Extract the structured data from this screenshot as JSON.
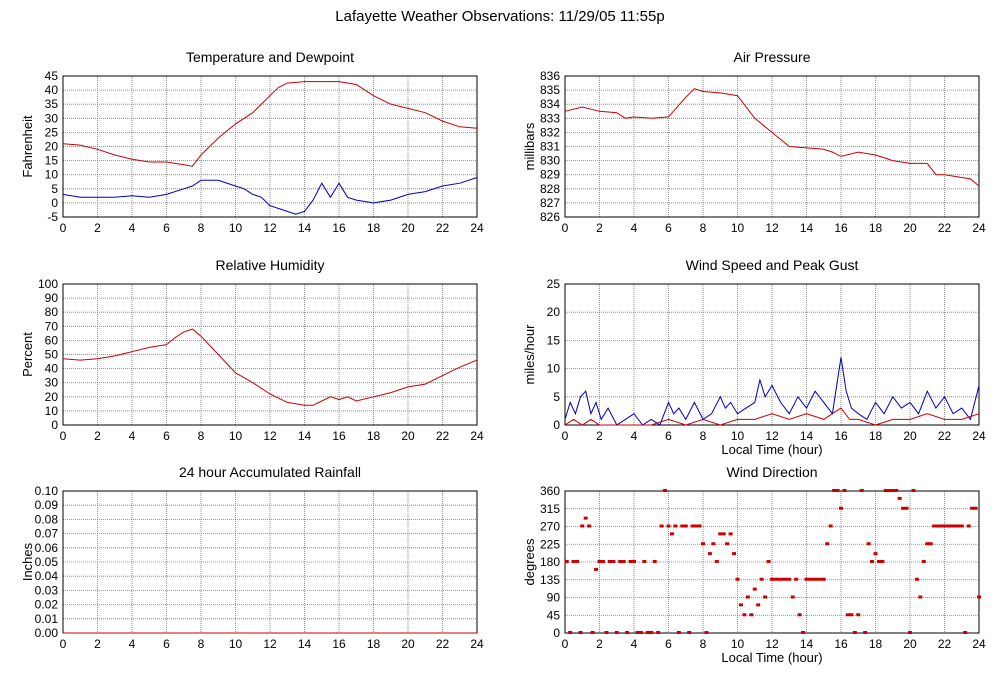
{
  "title": "Lafayette Weather Observations: 11/29/05 11:55p",
  "colors": {
    "red": "#cc0000",
    "blue": "#0000bb",
    "grid": "#777777"
  },
  "chart_data": [
    {
      "id": "temp",
      "type": "line",
      "title": "Temperature and Dewpoint",
      "xlabel": "",
      "ylabel": "Fahrenheit",
      "xlim": [
        0,
        24
      ],
      "ylim": [
        -5,
        45
      ],
      "xticks": [
        "0",
        "2",
        "4",
        "6",
        "8",
        "10",
        "12",
        "14",
        "16",
        "18",
        "20",
        "22",
        "24"
      ],
      "yticks": [
        "-5",
        "0",
        "5",
        "10",
        "15",
        "20",
        "25",
        "30",
        "35",
        "40",
        "45"
      ],
      "series": [
        {
          "color": "#cc0000",
          "x": [
            0,
            1,
            2,
            3,
            4,
            5,
            6,
            7,
            7.5,
            8,
            9,
            10,
            11,
            12,
            12.5,
            13,
            14,
            15,
            16,
            17,
            18,
            19,
            20,
            21,
            22,
            23,
            24
          ],
          "y": [
            21,
            20.5,
            19,
            17,
            15.5,
            14.5,
            14.5,
            13.5,
            13,
            17,
            23,
            28,
            32,
            38,
            41,
            42.5,
            43,
            43,
            43,
            42,
            38,
            35,
            33.5,
            32,
            29,
            27,
            26.5
          ]
        },
        {
          "color": "#0000bb",
          "x": [
            0,
            1,
            2,
            3,
            4,
            5,
            6,
            7,
            7.5,
            8,
            9,
            10,
            10.5,
            11,
            11.5,
            12,
            12.5,
            13,
            13.5,
            14,
            14.5,
            15,
            15.5,
            16,
            16.5,
            17,
            18,
            19,
            20,
            21,
            22,
            23,
            24
          ],
          "y": [
            3,
            2,
            2,
            2,
            2.5,
            2,
            3,
            5,
            6,
            8,
            8,
            6,
            5,
            3,
            2,
            -1,
            -2,
            -3,
            -4,
            -3,
            1,
            7,
            2,
            7,
            2,
            1,
            0,
            1,
            3,
            4,
            6,
            7,
            9
          ]
        }
      ]
    },
    {
      "id": "pressure",
      "type": "line",
      "title": "Air Pressure",
      "xlabel": "",
      "ylabel": "millibars",
      "xlim": [
        0,
        24
      ],
      "ylim": [
        826,
        836
      ],
      "xticks": [
        "0",
        "2",
        "4",
        "6",
        "8",
        "10",
        "12",
        "14",
        "16",
        "18",
        "20",
        "22",
        "24"
      ],
      "yticks": [
        "826",
        "827",
        "828",
        "829",
        "830",
        "831",
        "832",
        "833",
        "834",
        "835",
        "836"
      ],
      "series": [
        {
          "color": "#cc0000",
          "x": [
            0,
            1,
            2,
            3,
            3.5,
            4,
            5,
            6,
            7,
            7.5,
            8,
            9,
            10,
            11,
            12,
            13,
            14,
            15,
            15.5,
            16,
            17,
            18,
            19,
            20,
            21,
            21.5,
            22,
            23,
            23.5,
            24
          ],
          "y": [
            833.5,
            833.8,
            833.5,
            833.4,
            833.0,
            833.1,
            833.0,
            833.1,
            834.5,
            835.1,
            834.9,
            834.8,
            834.6,
            833.0,
            832.0,
            831.0,
            830.9,
            830.8,
            830.6,
            830.3,
            830.6,
            830.4,
            830.0,
            829.8,
            829.8,
            829.0,
            829.0,
            828.8,
            828.7,
            828.2
          ]
        }
      ]
    },
    {
      "id": "humidity",
      "type": "line",
      "title": "Relative Humidity",
      "xlabel": "",
      "ylabel": "Percent",
      "xlim": [
        0,
        24
      ],
      "ylim": [
        0,
        100
      ],
      "xticks": [
        "0",
        "2",
        "4",
        "6",
        "8",
        "10",
        "12",
        "14",
        "16",
        "18",
        "20",
        "22",
        "24"
      ],
      "yticks": [
        "0",
        "10",
        "20",
        "30",
        "40",
        "50",
        "60",
        "70",
        "80",
        "90",
        "100"
      ],
      "series": [
        {
          "color": "#cc0000",
          "x": [
            0,
            1,
            2,
            3,
            4,
            5,
            6,
            6.5,
            7,
            7.5,
            8,
            9,
            10,
            11,
            12,
            13,
            14,
            14.5,
            15,
            15.5,
            16,
            16.5,
            17,
            18,
            19,
            20,
            21,
            22,
            23,
            24
          ],
          "y": [
            47,
            46,
            47,
            49,
            52,
            55,
            57,
            62,
            66,
            68,
            63,
            50,
            37,
            30,
            22,
            16,
            14,
            14,
            17,
            20,
            18,
            20,
            17,
            20,
            23,
            27,
            29,
            35,
            41,
            46
          ]
        }
      ]
    },
    {
      "id": "wind",
      "type": "line",
      "title": "Wind Speed and Peak Gust",
      "xlabel": "Local Time (hour)",
      "ylabel": "miles/hour",
      "xlim": [
        0,
        24
      ],
      "ylim": [
        0,
        25
      ],
      "xticks": [
        "0",
        "2",
        "4",
        "6",
        "8",
        "10",
        "12",
        "14",
        "16",
        "18",
        "20",
        "22",
        "24"
      ],
      "yticks": [
        "0",
        "5",
        "10",
        "15",
        "20",
        "25"
      ],
      "series": [
        {
          "color": "#0000bb",
          "x": [
            0,
            0.3,
            0.6,
            0.9,
            1.2,
            1.5,
            1.8,
            2.1,
            2.5,
            3,
            3.5,
            4,
            4.5,
            5,
            5.5,
            6,
            6.3,
            6.6,
            7,
            7.5,
            8,
            8.5,
            9,
            9.3,
            9.6,
            10,
            10.5,
            11,
            11.3,
            11.6,
            12,
            12.5,
            13,
            13.5,
            14,
            14.5,
            15,
            15.5,
            16,
            16.3,
            16.6,
            17,
            17.5,
            18,
            18.5,
            19,
            19.5,
            20,
            20.5,
            21,
            21.5,
            22,
            22.5,
            23,
            23.5,
            24
          ],
          "y": [
            1,
            4,
            2,
            5,
            6,
            2,
            4,
            1,
            3,
            0,
            1,
            2,
            0,
            1,
            0,
            4,
            2,
            3,
            1,
            4,
            1,
            2,
            5,
            3,
            4,
            2,
            3,
            4,
            8,
            5,
            7,
            4,
            2,
            5,
            3,
            6,
            4,
            2,
            12,
            6,
            3,
            2,
            1,
            4,
            2,
            5,
            3,
            4,
            2,
            6,
            3,
            5,
            2,
            3,
            1,
            7
          ]
        },
        {
          "color": "#cc0000",
          "x": [
            0,
            0.5,
            1,
            1.5,
            2,
            3,
            4,
            5,
            6,
            7,
            8,
            9,
            10,
            11,
            12,
            13,
            14,
            15,
            15.5,
            16,
            16.5,
            17,
            18,
            19,
            20,
            21,
            22,
            23,
            24
          ],
          "y": [
            0,
            1,
            0,
            1,
            0,
            0,
            0,
            0,
            1,
            0,
            1,
            0,
            1,
            1,
            2,
            1,
            2,
            1,
            2,
            3,
            1,
            1,
            0,
            1,
            1,
            2,
            1,
            1,
            2
          ]
        }
      ]
    },
    {
      "id": "rain",
      "type": "line",
      "title": "24 hour Accumulated Rainfall",
      "xlabel": "",
      "ylabel": "Inches",
      "xlim": [
        0,
        24
      ],
      "ylim": [
        0,
        0.1
      ],
      "xticks": [
        "0",
        "2",
        "4",
        "6",
        "8",
        "10",
        "12",
        "14",
        "16",
        "18",
        "20",
        "22",
        "24"
      ],
      "yticks": [
        "0.00",
        "0.01",
        "0.02",
        "0.03",
        "0.04",
        "0.05",
        "0.06",
        "0.07",
        "0.08",
        "0.09",
        "0.10"
      ],
      "series": [
        {
          "color": "#cc0000",
          "x": [
            0,
            24
          ],
          "y": [
            0,
            0
          ]
        }
      ]
    },
    {
      "id": "direction",
      "type": "scatter",
      "title": "Wind Direction",
      "xlabel": "Local Time (hour)",
      "ylabel": "degrees",
      "xlim": [
        0,
        24
      ],
      "ylim": [
        0,
        360
      ],
      "xticks": [
        "0",
        "2",
        "4",
        "6",
        "8",
        "10",
        "12",
        "14",
        "16",
        "18",
        "20",
        "22",
        "24"
      ],
      "yticks": [
        "0",
        "45",
        "90",
        "135",
        "180",
        "225",
        "270",
        "315",
        "360"
      ],
      "series": [
        {
          "color": "#cc0000",
          "x": [
            0.1,
            0.3,
            0.5,
            0.7,
            0.9,
            1.0,
            1.2,
            1.4,
            1.6,
            1.8,
            2.0,
            2.2,
            2.4,
            2.6,
            2.8,
            3.0,
            3.2,
            3.4,
            3.6,
            3.8,
            4.0,
            4.2,
            4.4,
            4.6,
            4.8,
            5.0,
            5.2,
            5.4,
            5.6,
            5.8,
            6.0,
            6.2,
            6.4,
            6.6,
            6.8,
            7.0,
            7.2,
            7.4,
            7.6,
            7.8,
            8.0,
            8.2,
            8.4,
            8.6,
            8.8,
            9.0,
            9.2,
            9.4,
            9.6,
            9.8,
            10.0,
            10.2,
            10.4,
            10.6,
            10.8,
            11.0,
            11.2,
            11.4,
            11.6,
            11.8,
            12.0,
            12.2,
            12.4,
            12.6,
            12.8,
            13.0,
            13.2,
            13.4,
            13.6,
            13.8,
            14.0,
            14.2,
            14.4,
            14.6,
            14.8,
            15.0,
            15.2,
            15.4,
            15.6,
            15.8,
            16.0,
            16.2,
            16.4,
            16.6,
            16.8,
            17.0,
            17.2,
            17.4,
            17.6,
            17.8,
            18.0,
            18.2,
            18.4,
            18.6,
            18.8,
            19.0,
            19.2,
            19.4,
            19.6,
            19.8,
            20.0,
            20.2,
            20.4,
            20.6,
            20.8,
            21.0,
            21.2,
            21.4,
            21.6,
            21.8,
            22.0,
            22.2,
            22.4,
            22.6,
            22.8,
            23.0,
            23.2,
            23.4,
            23.6,
            23.8,
            24.0
          ],
          "y": [
            180,
            0,
            180,
            180,
            0,
            270,
            290,
            270,
            0,
            160,
            180,
            180,
            0,
            180,
            180,
            0,
            180,
            180,
            0,
            180,
            180,
            0,
            0,
            180,
            0,
            0,
            180,
            0,
            270,
            360,
            270,
            250,
            270,
            0,
            270,
            270,
            0,
            270,
            270,
            270,
            225,
            0,
            200,
            225,
            180,
            250,
            250,
            225,
            250,
            200,
            135,
            70,
            45,
            90,
            45,
            110,
            70,
            135,
            90,
            180,
            135,
            135,
            135,
            135,
            135,
            135,
            90,
            135,
            45,
            0,
            135,
            135,
            135,
            135,
            135,
            135,
            225,
            270,
            360,
            360,
            315,
            360,
            45,
            45,
            0,
            45,
            360,
            0,
            225,
            180,
            200,
            180,
            180,
            360,
            360,
            360,
            360,
            340,
            315,
            315,
            0,
            360,
            135,
            90,
            180,
            225,
            225,
            270,
            270,
            270,
            270,
            270,
            270,
            270,
            270,
            270,
            0,
            270,
            315,
            315,
            90
          ]
        }
      ]
    }
  ]
}
